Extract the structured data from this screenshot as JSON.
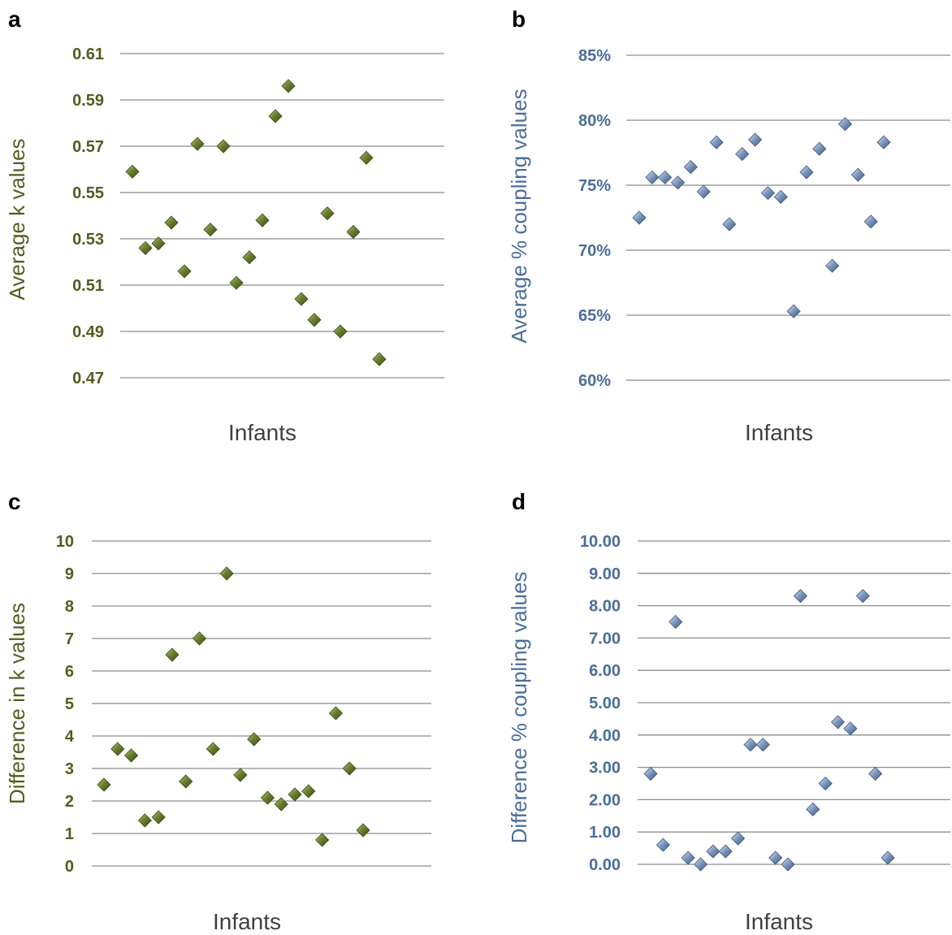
{
  "colors": {
    "green_text": "#4f5f1f",
    "blue_text": "#4a6d9c",
    "green_marker": "#566b2a",
    "green_marker_light": "#9cb35a",
    "blue_marker": "#6f8cb4",
    "blue_marker_light": "#cfdced",
    "grid": "#8c8c8c"
  },
  "chart_data": [
    {
      "panel": "a",
      "type": "scatter",
      "xlabel": "Infants",
      "ylabel": "Average k values",
      "ylim": [
        0.47,
        0.61
      ],
      "yticks": [
        "0.61",
        "0.59",
        "0.57",
        "0.55",
        "0.53",
        "0.51",
        "0.49",
        "0.47"
      ],
      "ytick_values": [
        0.61,
        0.59,
        0.57,
        0.55,
        0.53,
        0.51,
        0.49,
        0.47
      ],
      "grid": true,
      "marker": "diamond",
      "color": "green",
      "x": [
        1,
        2,
        3,
        4,
        5,
        6,
        7,
        8,
        9,
        10,
        11,
        12,
        13,
        14,
        15,
        16,
        17,
        18,
        19,
        20
      ],
      "values": [
        0.559,
        0.526,
        0.528,
        0.537,
        0.516,
        0.571,
        0.534,
        0.57,
        0.511,
        0.522,
        0.538,
        0.583,
        0.596,
        0.504,
        0.495,
        0.541,
        0.49,
        0.533,
        0.565,
        0.478
      ]
    },
    {
      "panel": "b",
      "type": "scatter",
      "xlabel": "Infants",
      "ylabel": "Average % coupling values",
      "ylim": [
        60,
        85
      ],
      "yticks": [
        "85%",
        "80%",
        "75%",
        "70%",
        "65%",
        "60%"
      ],
      "ytick_values": [
        85,
        80,
        75,
        70,
        65,
        60
      ],
      "grid": true,
      "marker": "diamond",
      "color": "blue",
      "x": [
        1,
        2,
        3,
        4,
        5,
        6,
        7,
        8,
        9,
        10,
        11,
        12,
        13,
        14,
        15,
        16,
        17,
        18,
        19,
        20
      ],
      "values": [
        72.5,
        75.6,
        75.6,
        75.2,
        76.4,
        74.5,
        78.3,
        72.0,
        77.4,
        78.5,
        74.4,
        74.1,
        65.3,
        76.0,
        77.8,
        68.8,
        79.7,
        75.8,
        72.2,
        78.3
      ]
    },
    {
      "panel": "c",
      "type": "scatter",
      "xlabel": "Infants",
      "ylabel": "Difference in k values",
      "ylim": [
        0,
        10
      ],
      "yticks": [
        "10",
        "9",
        "8",
        "7",
        "6",
        "5",
        "4",
        "3",
        "2",
        "1",
        "0"
      ],
      "ytick_values": [
        10,
        9,
        8,
        7,
        6,
        5,
        4,
        3,
        2,
        1,
        0
      ],
      "grid": true,
      "marker": "diamond",
      "color": "green",
      "x": [
        1,
        2,
        3,
        4,
        5,
        6,
        7,
        8,
        9,
        10,
        11,
        12,
        13,
        14,
        15,
        16,
        17,
        18,
        19,
        20
      ],
      "values": [
        2.5,
        3.6,
        3.4,
        1.4,
        1.5,
        6.5,
        2.6,
        7.0,
        3.6,
        9.0,
        2.8,
        3.9,
        2.1,
        1.9,
        2.2,
        2.3,
        0.8,
        4.7,
        3.0,
        1.1
      ]
    },
    {
      "panel": "d",
      "type": "scatter",
      "xlabel": "Infants",
      "ylabel": "Difference % coupling values",
      "ylim": [
        0,
        10
      ],
      "yticks": [
        "10.00",
        "9.00",
        "8.00",
        "7.00",
        "6.00",
        "5.00",
        "4.00",
        "3.00",
        "2.00",
        "1.00",
        "0.00"
      ],
      "ytick_values": [
        10,
        9,
        8,
        7,
        6,
        5,
        4,
        3,
        2,
        1,
        0
      ],
      "grid": true,
      "marker": "diamond",
      "color": "blue",
      "x": [
        1,
        2,
        3,
        4,
        5,
        6,
        7,
        8,
        9,
        10,
        11,
        12,
        13,
        14,
        15,
        16,
        17,
        18,
        19,
        20
      ],
      "values": [
        2.8,
        0.6,
        7.5,
        0.2,
        0.0,
        0.4,
        0.4,
        0.8,
        3.7,
        3.7,
        0.2,
        0.0,
        8.3,
        1.7,
        2.5,
        4.4,
        4.2,
        8.3,
        2.8,
        0.2
      ]
    }
  ]
}
